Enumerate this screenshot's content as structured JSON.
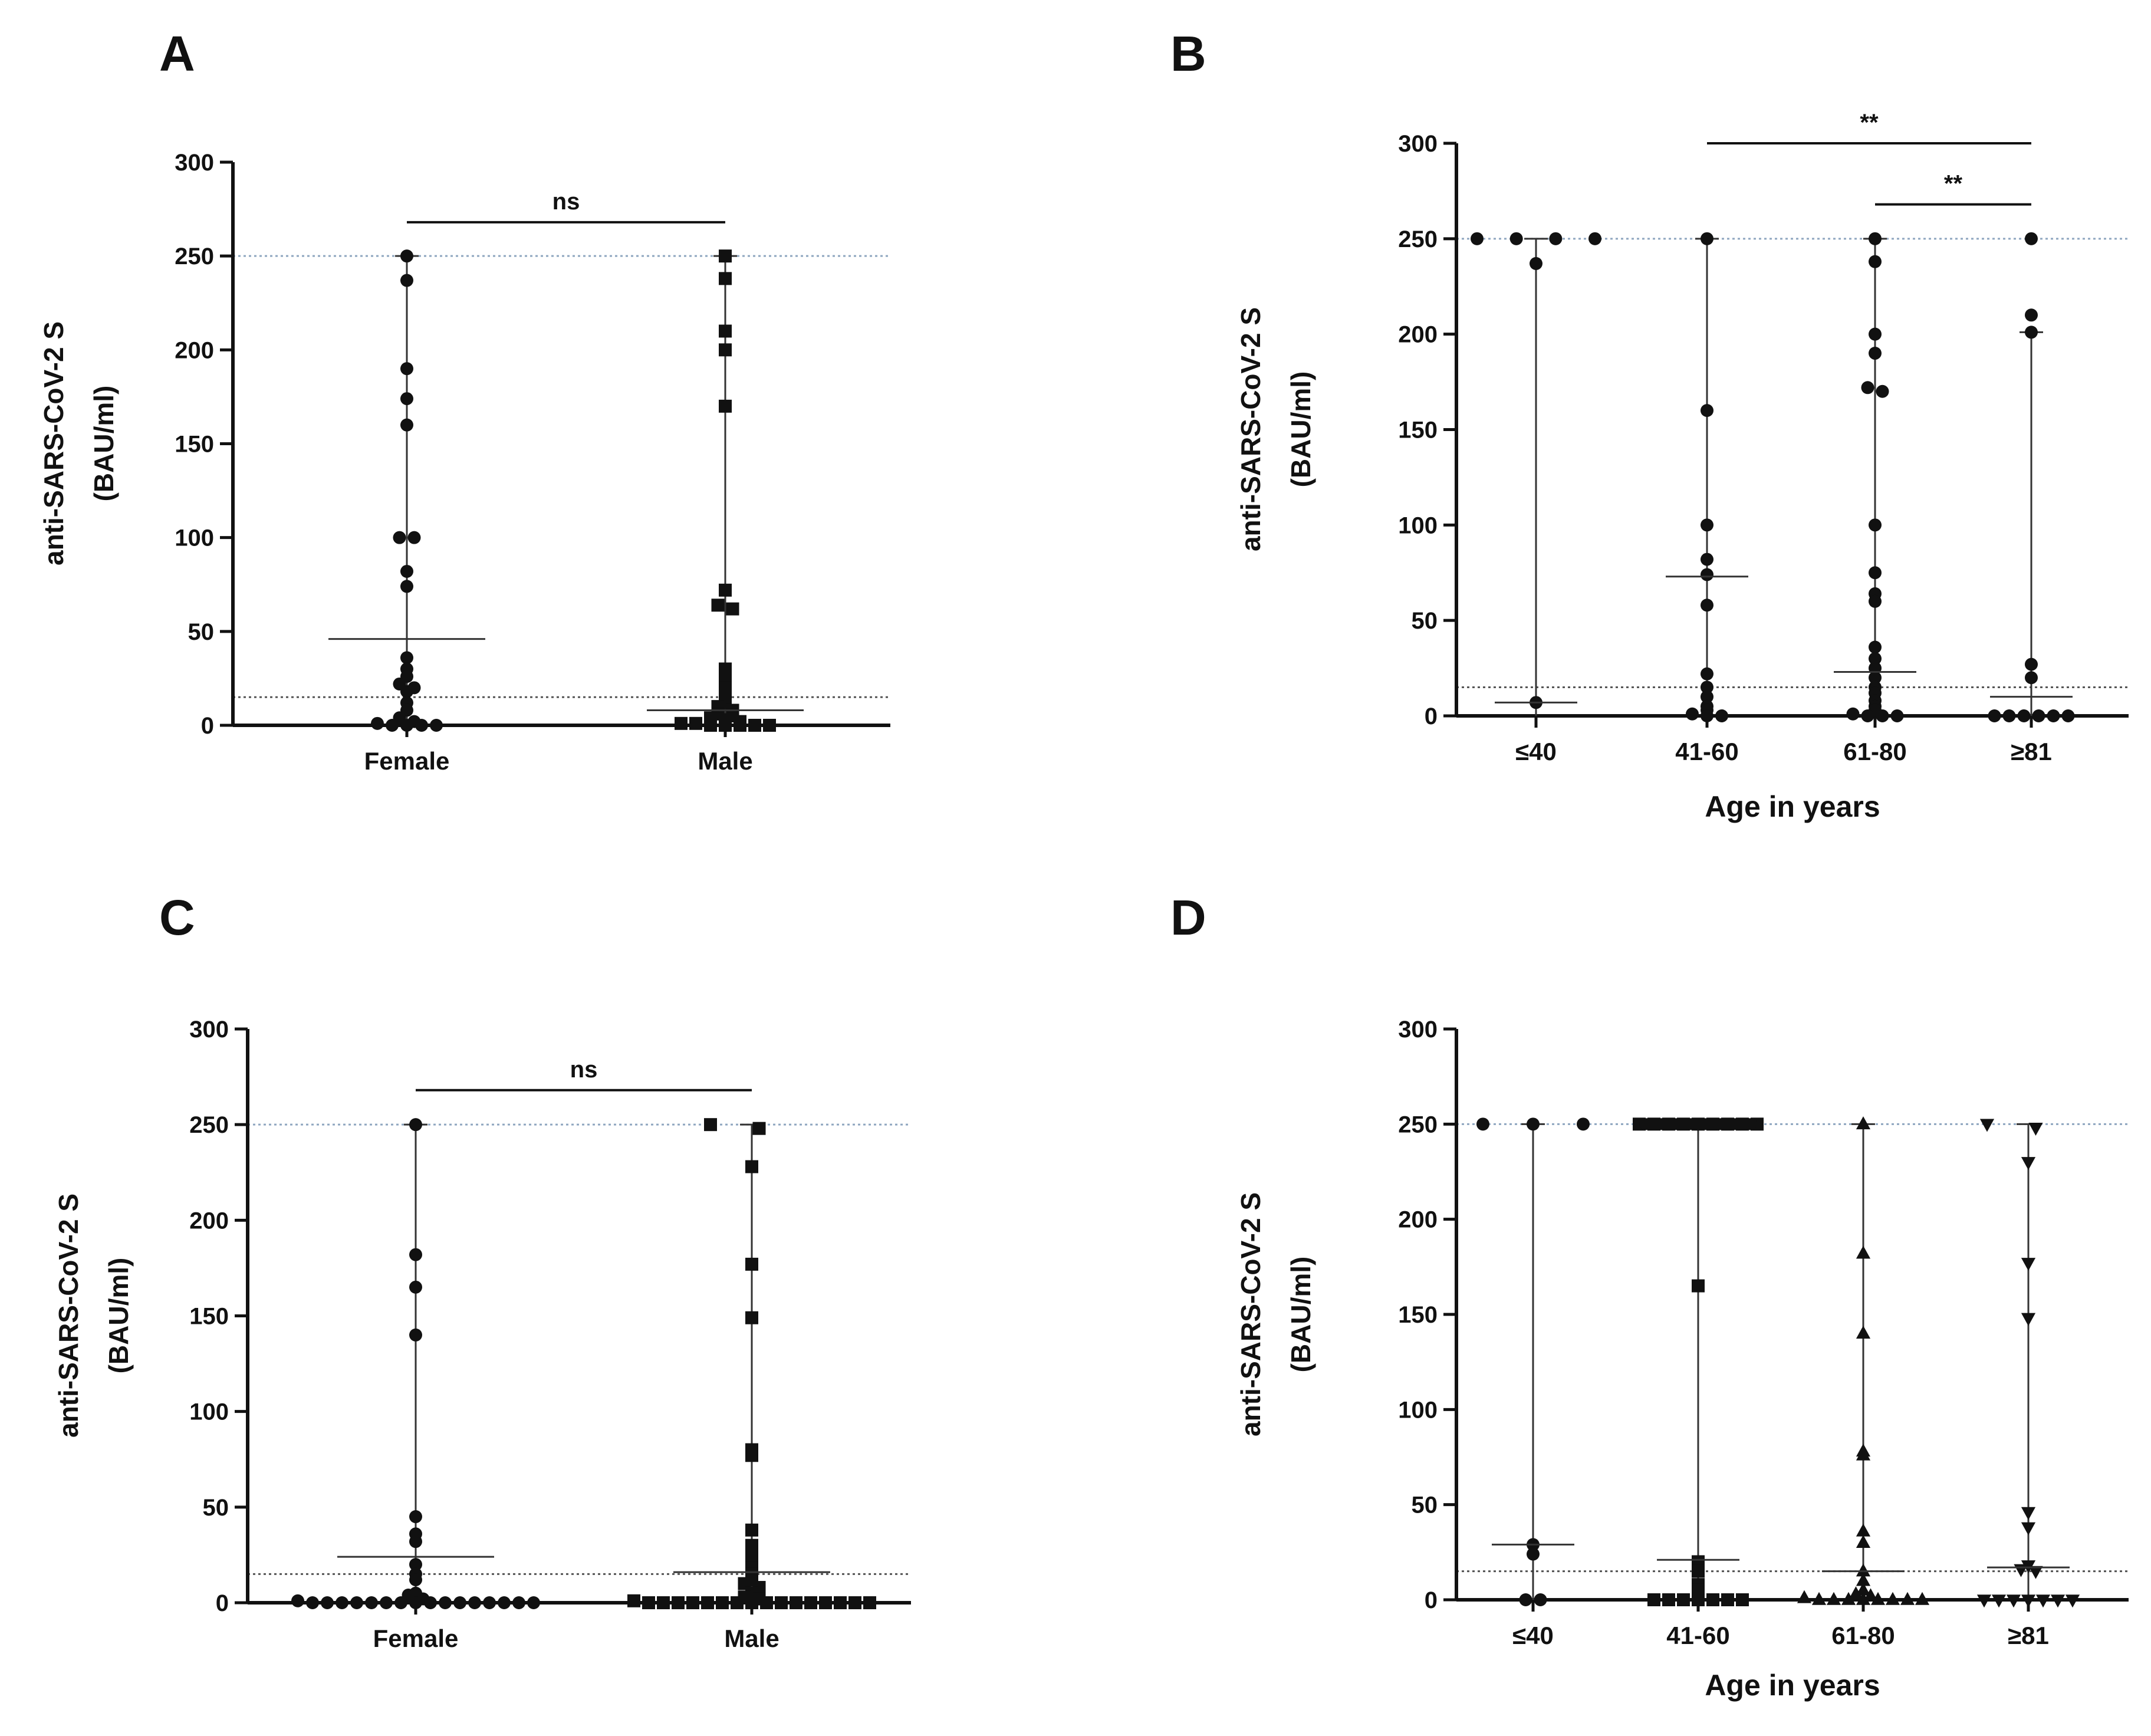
{
  "chart_data": [
    {
      "panel": "A",
      "type": "scatter",
      "ylabel_line1": "anti-SARS-CoV-2 S",
      "ylabel_line2": "(BAU/ml)",
      "xlabel": "",
      "ylim": [
        0,
        300
      ],
      "yticks": [
        "0",
        "50",
        "100",
        "150",
        "200",
        "250",
        "300"
      ],
      "ref_lines": [
        250,
        15
      ],
      "categories": [
        {
          "label": "Female",
          "marker": "circle",
          "median": 46,
          "range": [
            0,
            250
          ],
          "points": [
            250,
            237,
            190,
            174,
            160,
            100,
            100,
            82,
            74,
            36,
            30,
            26,
            22,
            20,
            18,
            12,
            8,
            4,
            2,
            1,
            0,
            0,
            0,
            0
          ]
        },
        {
          "label": "Male",
          "marker": "square",
          "median": 8,
          "range": [
            0,
            250
          ],
          "points": [
            250,
            238,
            210,
            200,
            170,
            72,
            64,
            62,
            30,
            25,
            20,
            15,
            12,
            10,
            8,
            6,
            5,
            4,
            3,
            2,
            1,
            1,
            0,
            0,
            0,
            0,
            0
          ]
        }
      ],
      "comparisons": [
        {
          "from": 0,
          "to": 1,
          "y": 268,
          "label": "ns"
        }
      ]
    },
    {
      "panel": "B",
      "type": "scatter",
      "ylabel_line1": "anti-SARS-CoV-2 S",
      "ylabel_line2": "(BAU/ml)",
      "xlabel": "Age in years",
      "ylim": [
        0,
        300
      ],
      "yticks": [
        "0",
        "50",
        "100",
        "150",
        "200",
        "250",
        "300"
      ],
      "ref_lines": [
        250,
        15
      ],
      "categories": [
        {
          "label": "≤40",
          "marker": "circle",
          "median": 7,
          "range": [
            0,
            250
          ],
          "points": [
            250,
            250,
            250,
            250,
            237,
            7
          ]
        },
        {
          "label": "41-60",
          "marker": "circle",
          "median": 73,
          "range": [
            0,
            250
          ],
          "points": [
            250,
            160,
            100,
            82,
            74,
            58,
            22,
            15,
            10,
            5,
            3,
            1,
            0,
            0
          ]
        },
        {
          "label": "61-80",
          "marker": "circle",
          "median": 23,
          "range": [
            0,
            250
          ],
          "points": [
            250,
            238,
            200,
            190,
            172,
            170,
            100,
            75,
            64,
            60,
            36,
            30,
            25,
            20,
            15,
            12,
            8,
            5,
            3,
            1,
            0,
            0,
            0
          ]
        },
        {
          "label": "≥81",
          "marker": "circle",
          "median": 10,
          "range": [
            0,
            201
          ],
          "points": [
            250,
            210,
            201,
            27,
            20,
            0,
            0,
            0,
            0,
            0,
            0
          ]
        }
      ],
      "comparisons": [
        {
          "from": 1,
          "to": 3,
          "y": 300,
          "label": "**"
        },
        {
          "from": 2,
          "to": 3,
          "y": 268,
          "label": "**"
        }
      ]
    },
    {
      "panel": "C",
      "type": "scatter",
      "ylabel_line1": "anti-SARS-CoV-2 S",
      "ylabel_line2": "(BAU/ml)",
      "xlabel": "",
      "ylim": [
        0,
        300
      ],
      "yticks": [
        "0",
        "50",
        "100",
        "150",
        "200",
        "250",
        "300"
      ],
      "ref_lines": [
        250,
        15
      ],
      "categories": [
        {
          "label": "Female",
          "marker": "circle",
          "median": 24,
          "range": [
            0,
            250
          ],
          "points": [
            250,
            182,
            165,
            140,
            45,
            36,
            32,
            20,
            15,
            12,
            5,
            4,
            2,
            1,
            0,
            0,
            0,
            0,
            0,
            0,
            0,
            0,
            0,
            0,
            0,
            0,
            0,
            0,
            0,
            0
          ]
        },
        {
          "label": "Male",
          "marker": "square",
          "median": 16,
          "range": [
            0,
            250
          ],
          "points": [
            250,
            248,
            228,
            177,
            149,
            80,
            77,
            38,
            30,
            25,
            20,
            18,
            15,
            12,
            10,
            8,
            5,
            3,
            2,
            1,
            0,
            0,
            0,
            0,
            0,
            0,
            0,
            0,
            0,
            0,
            0,
            0,
            0,
            0,
            0,
            0
          ]
        }
      ],
      "comparisons": [
        {
          "from": 0,
          "to": 1,
          "y": 268,
          "label": "ns"
        }
      ]
    },
    {
      "panel": "D",
      "type": "scatter",
      "ylabel_line1": "anti-SARS-CoV-2 S",
      "ylabel_line2": "(BAU/ml)",
      "xlabel": "Age in years",
      "ylim": [
        0,
        300
      ],
      "yticks": [
        "0",
        "50",
        "100",
        "150",
        "200",
        "250",
        "300"
      ],
      "ref_lines": [
        250,
        15
      ],
      "categories": [
        {
          "label": "≤40",
          "marker": "circle",
          "median": 29,
          "range": [
            0,
            250
          ],
          "points": [
            250,
            250,
            250,
            29,
            24,
            0,
            0
          ]
        },
        {
          "label": "41-60",
          "marker": "square",
          "median": 21,
          "range": [
            0,
            250
          ],
          "points": [
            250,
            250,
            250,
            250,
            250,
            250,
            250,
            250,
            250,
            165,
            20,
            15,
            8,
            5,
            0,
            0,
            0,
            0,
            0,
            0,
            0
          ]
        },
        {
          "label": "61-80",
          "marker": "triangle-up",
          "median": 15,
          "range": [
            0,
            250
          ],
          "points": [
            250,
            182,
            140,
            78,
            76,
            36,
            30,
            15,
            10,
            5,
            3,
            2,
            1,
            0,
            0,
            0,
            0,
            0,
            0,
            0,
            0
          ]
        },
        {
          "label": "≥81",
          "marker": "triangle-down",
          "median": 17,
          "range": [
            0,
            250
          ],
          "points": [
            250,
            248,
            230,
            177,
            148,
            46,
            38,
            18,
            16,
            15,
            0,
            0,
            0,
            0,
            0,
            0,
            0
          ]
        }
      ],
      "comparisons": []
    }
  ]
}
